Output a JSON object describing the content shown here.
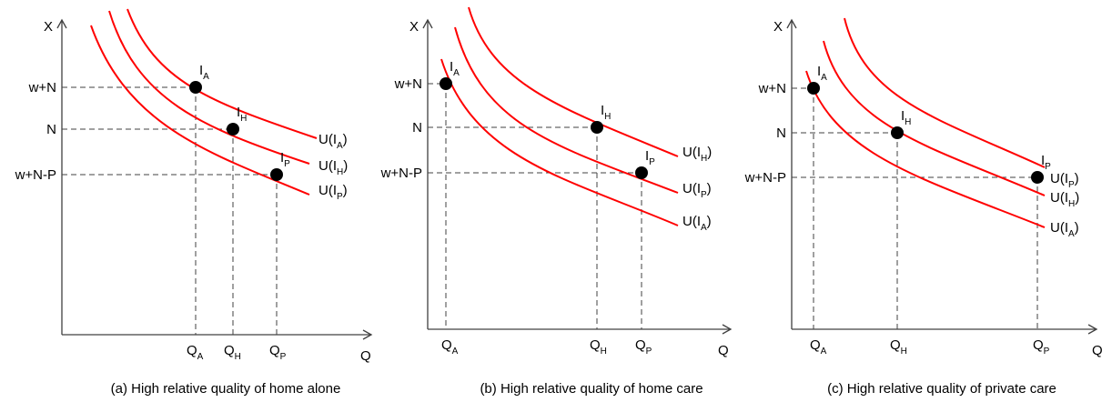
{
  "axis_labels": {
    "x": "Q",
    "y": "X"
  },
  "colors": {
    "curve": "#ff0000",
    "axis": "#404040",
    "point": "#000000"
  },
  "panels": [
    {
      "id": "a",
      "caption": "(a) High relative quality of home alone",
      "y_levels": [
        "w+N",
        "N",
        "w+N-P"
      ],
      "q_labels": [
        {
          "base": "Q",
          "sub": "A"
        },
        {
          "base": "Q",
          "sub": "H"
        },
        {
          "base": "Q",
          "sub": "P"
        }
      ],
      "points": [
        {
          "base": "I",
          "sub": "A"
        },
        {
          "base": "I",
          "sub": "H"
        },
        {
          "base": "I",
          "sub": "P"
        }
      ],
      "curves": [
        {
          "base": "U(I",
          "sub": "A",
          "close": ")"
        },
        {
          "base": "U(I",
          "sub": "H",
          "close": ")"
        },
        {
          "base": "U(I",
          "sub": "P",
          "close": ")"
        }
      ]
    },
    {
      "id": "b",
      "caption": "(b) High relative quality of home care",
      "y_levels": [
        "w+N",
        "N",
        "w+N-P"
      ],
      "q_labels": [
        {
          "base": "Q",
          "sub": "A"
        },
        {
          "base": "Q",
          "sub": "H"
        },
        {
          "base": "Q",
          "sub": "P"
        }
      ],
      "points": [
        {
          "base": "I",
          "sub": "A"
        },
        {
          "base": "I",
          "sub": "H"
        },
        {
          "base": "I",
          "sub": "P"
        }
      ],
      "curves": [
        {
          "base": "U(I",
          "sub": "H",
          "close": ")"
        },
        {
          "base": "U(I",
          "sub": "P",
          "close": ")"
        },
        {
          "base": "U(I",
          "sub": "A",
          "close": ")"
        }
      ]
    },
    {
      "id": "c",
      "caption": "(c) High relative quality of private care",
      "y_levels": [
        "w+N",
        "N",
        "w+N-P"
      ],
      "q_labels": [
        {
          "base": "Q",
          "sub": "A"
        },
        {
          "base": "Q",
          "sub": "H"
        },
        {
          "base": "Q",
          "sub": "P"
        }
      ],
      "points": [
        {
          "base": "I",
          "sub": "A"
        },
        {
          "base": "I",
          "sub": "H"
        },
        {
          "base": "I",
          "sub": "P"
        }
      ],
      "curves": [
        {
          "base": "U(I",
          "sub": "P",
          "close": ")"
        },
        {
          "base": "U(I",
          "sub": "H",
          "close": ")"
        },
        {
          "base": "U(I",
          "sub": "A",
          "close": ")"
        }
      ]
    }
  ]
}
